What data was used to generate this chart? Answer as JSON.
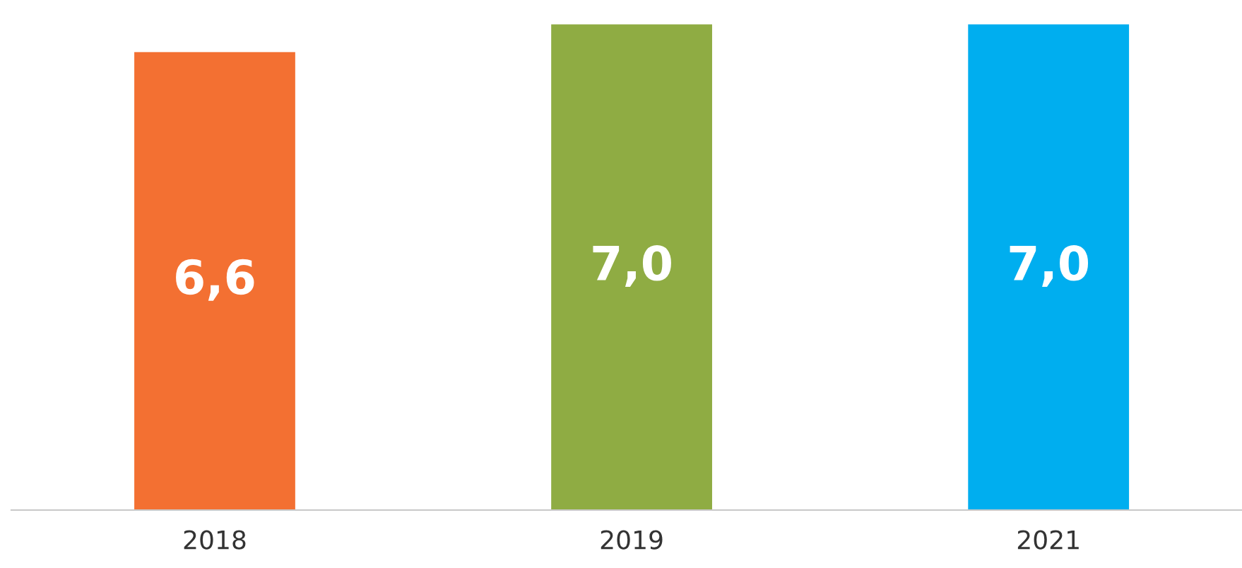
{
  "chart_data": {
    "type": "bar",
    "categories": [
      "2018",
      "2019",
      "2021"
    ],
    "values": [
      6.6,
      7.0,
      7.0
    ],
    "colors": [
      "#f37032",
      "#8fac43",
      "#00aeef"
    ],
    "value_labels": [
      "6,6",
      "7,0",
      "7,0"
    ],
    "grid": false,
    "legend": false
  }
}
